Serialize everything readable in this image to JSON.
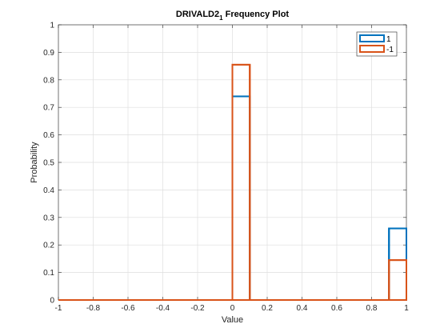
{
  "chart_data": {
    "type": "histogram",
    "title_main": "DRIVALD2",
    "title_sub": "1",
    "title_rest": " Frequency Plot",
    "xlabel": "Value",
    "ylabel": "Probability",
    "xlim": [
      -1,
      1
    ],
    "ylim": [
      0,
      1
    ],
    "xticks": [
      "-1",
      "-0.8",
      "-0.6",
      "-0.4",
      "-0.2",
      "0",
      "0.2",
      "0.4",
      "0.6",
      "0.8",
      "1"
    ],
    "yticks": [
      "0",
      "0.1",
      "0.2",
      "0.3",
      "0.4",
      "0.5",
      "0.6",
      "0.7",
      "0.8",
      "0.9",
      "1"
    ],
    "grid": true,
    "legend_position": "top-right",
    "series": [
      {
        "name": "1",
        "color": "#0072BD",
        "edges": [
          -1,
          0,
          0.1,
          0.9,
          1
        ],
        "values": [
          0,
          0.74,
          0,
          0.26
        ]
      },
      {
        "name": "-1",
        "color": "#D95319",
        "edges": [
          -1,
          0,
          0.1,
          0.9,
          1
        ],
        "values": [
          0,
          0.855,
          0,
          0.145
        ]
      }
    ]
  }
}
